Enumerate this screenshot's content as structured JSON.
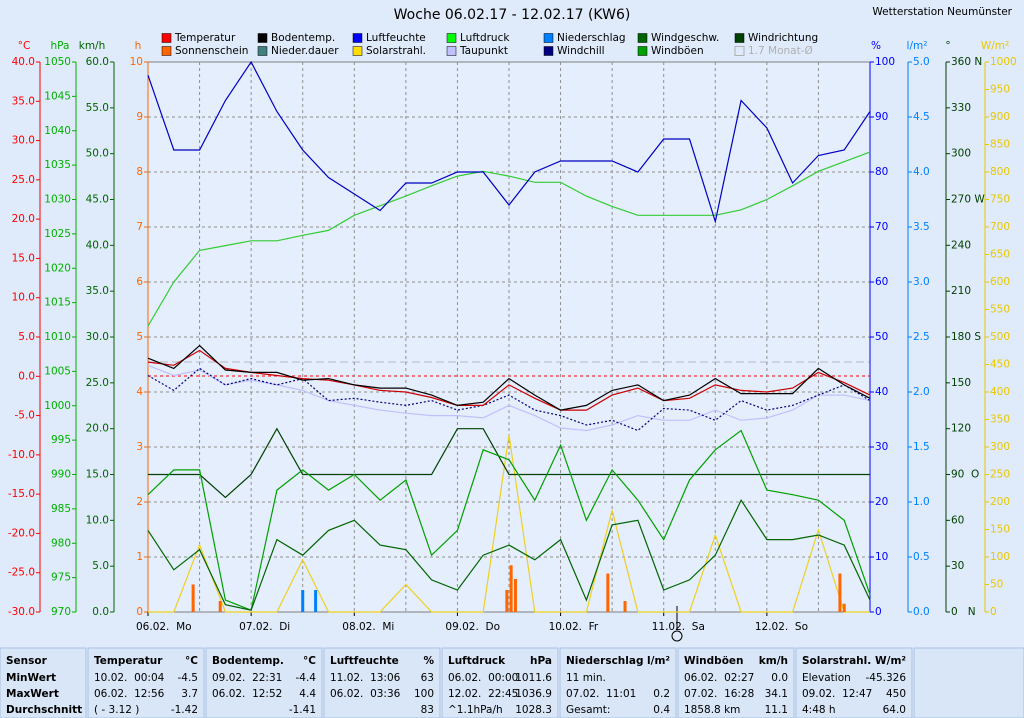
{
  "chart_data": {
    "type": "line",
    "title": "Woche 06.02.17 - 12.02.17 (KW6)",
    "station": "Wetterstation Neumünster",
    "xlim": [
      0,
      168
    ],
    "xticks": [
      {
        "value": 0,
        "label": "06.02.  Mo"
      },
      {
        "value": 24,
        "label": "07.02.  Di"
      },
      {
        "value": 48,
        "label": "08.02.  Mi"
      },
      {
        "value": 72,
        "label": "09.02.  Do"
      },
      {
        "value": 96,
        "label": "10.02.  Fr"
      },
      {
        "value": 120,
        "label": "11.02.  Sa"
      },
      {
        "value": 144,
        "label": "12.02.  So"
      }
    ],
    "xminor": [
      12,
      36,
      60,
      84,
      108,
      132,
      156
    ],
    "axes": [
      {
        "unit": "°C",
        "color": "#ff0000",
        "lim": [
          -30,
          40
        ],
        "ticks": [
          {
            "value": 40,
            "label": "40.0"
          },
          {
            "value": 35,
            "label": "35.0"
          },
          {
            "value": 30,
            "label": "30.0"
          },
          {
            "value": 25,
            "label": "25.0"
          },
          {
            "value": 20,
            "label": "20.0"
          },
          {
            "value": 15,
            "label": "15.0"
          },
          {
            "value": 10,
            "label": "10.0"
          },
          {
            "value": 5,
            "label": "5.0"
          },
          {
            "value": 0,
            "label": "0.0"
          },
          {
            "value": -5,
            "label": "-5.0"
          },
          {
            "value": -10,
            "label": "-10.0"
          },
          {
            "value": -15,
            "label": "-15.0"
          },
          {
            "value": -20,
            "label": "-20.0"
          },
          {
            "value": -25,
            "label": "-25.0"
          },
          {
            "value": -30,
            "label": "-30.0"
          }
        ]
      },
      {
        "unit": "hPa",
        "color": "#00b000",
        "lim": [
          970,
          1050
        ],
        "ticks": [
          1050,
          1045,
          1040,
          1035,
          1030,
          1025,
          1020,
          1015,
          1010,
          1005,
          1000,
          995,
          990,
          985,
          980,
          975,
          970
        ]
      },
      {
        "unit": "km/h",
        "color": "#006400",
        "lim": [
          0,
          60
        ],
        "ticks": [
          {
            "value": 60,
            "label": "60.0"
          },
          {
            "value": 55,
            "label": "55.0"
          },
          {
            "value": 50,
            "label": "50.0"
          },
          {
            "value": 45,
            "label": "45.0"
          },
          {
            "value": 40,
            "label": "40.0"
          },
          {
            "value": 35,
            "label": "35.0"
          },
          {
            "value": 30,
            "label": "30.0"
          },
          {
            "value": 25,
            "label": "25.0"
          },
          {
            "value": 20,
            "label": "20.0"
          },
          {
            "value": 15,
            "label": "15.0"
          },
          {
            "value": 10,
            "label": "10.0"
          },
          {
            "value": 5,
            "label": "5.0"
          },
          {
            "value": 0,
            "label": "0.0"
          }
        ]
      },
      {
        "unit": "h",
        "color": "#ff6600",
        "lim": [
          0,
          10
        ],
        "grid": true,
        "ticks": [
          10,
          9,
          8,
          7,
          6,
          5,
          4,
          3,
          2,
          1,
          0
        ]
      },
      {
        "unit": "%",
        "color": "#0000ff",
        "lim": [
          0,
          100
        ],
        "ticks": [
          100,
          90,
          80,
          70,
          60,
          50,
          40,
          30,
          20,
          10,
          0
        ]
      },
      {
        "unit": "l/m²",
        "color": "#0080ff",
        "lim": [
          0,
          5
        ],
        "ticks": [
          {
            "value": 5,
            "label": "5.0"
          },
          {
            "value": 4.5,
            "label": "4.5"
          },
          {
            "value": 4,
            "label": "4.0"
          },
          {
            "value": 3.5,
            "label": "3.5"
          },
          {
            "value": 3,
            "label": "3.0"
          },
          {
            "value": 2.5,
            "label": "2.5"
          },
          {
            "value": 2,
            "label": "2.0"
          },
          {
            "value": 1.5,
            "label": "1.5"
          },
          {
            "value": 1,
            "label": "1.0"
          },
          {
            "value": 0.5,
            "label": "0.5"
          },
          {
            "value": 0,
            "label": "0.0"
          }
        ]
      },
      {
        "unit": "°",
        "color": "#004000",
        "lim": [
          0,
          360
        ],
        "ticks": [
          {
            "value": 360,
            "label": "360 N"
          },
          330,
          300,
          {
            "value": 270,
            "label": "270 W"
          },
          240,
          210,
          {
            "value": 180,
            "label": "180 S"
          },
          150,
          120,
          {
            "value": 90,
            "label": "90  O"
          },
          60,
          30,
          {
            "value": 0,
            "label": "0   N"
          }
        ]
      },
      {
        "unit": "W/m²",
        "color": "#e8c800",
        "lim": [
          0,
          1000
        ],
        "ticks": [
          1000,
          950,
          900,
          850,
          800,
          750,
          700,
          650,
          600,
          550,
          500,
          450,
          400,
          350,
          300,
          250,
          200,
          150,
          100,
          50,
          0
        ]
      }
    ],
    "x": [
      0,
      6,
      12,
      18,
      24,
      30,
      36,
      42,
      48,
      54,
      60,
      66,
      72,
      78,
      84,
      90,
      96,
      102,
      108,
      114,
      120,
      126,
      132,
      138,
      144,
      150,
      156,
      162,
      168
    ],
    "series": [
      {
        "name": "Temperatur",
        "color": "#ff0000",
        "line_color": "#cc0000",
        "axis": 0,
        "values": [
          1.8,
          1.4,
          3.3,
          1,
          0.5,
          0.1,
          -0.3,
          -0.5,
          -1.1,
          -1.8,
          -2,
          -2.7,
          -3.7,
          -3.7,
          -1.1,
          -2.8,
          -4.3,
          -4.3,
          -2.4,
          -1.5,
          -3.1,
          -2.8,
          -1.1,
          -1.8,
          -2,
          -1.5,
          0.5,
          -0.8,
          -2.4
        ]
      },
      {
        "name": "Bodentemp.",
        "color": "#000000",
        "axis": 0,
        "values": [
          2.3,
          1,
          3.9,
          0.8,
          0.5,
          0.5,
          -0.5,
          -0.3,
          -1.1,
          -1.5,
          -1.5,
          -2.4,
          -3.7,
          -3.3,
          -0.3,
          -2.4,
          -4.3,
          -3.7,
          -1.8,
          -1.1,
          -3.1,
          -2.4,
          -0.3,
          -2.2,
          -2.2,
          -2.2,
          1,
          -1.1,
          -2.8
        ]
      },
      {
        "name": "Luftfeuchte",
        "color": "#0000ff",
        "line_color": "#0000c0",
        "axis": 4,
        "values": [
          97.6,
          84,
          84,
          93,
          100,
          91,
          84,
          79,
          76,
          73,
          78,
          78,
          80,
          80,
          74,
          80,
          82,
          82,
          82,
          80,
          86,
          86,
          71,
          93,
          88,
          78,
          83,
          84,
          91
        ]
      },
      {
        "name": "Luftdruck",
        "color": "#00ff00",
        "line_color": "#33cc33",
        "axis": 1,
        "values": [
          1011.6,
          1018,
          1022.6,
          1023.3,
          1024,
          1024,
          1024.8,
          1025.5,
          1027.7,
          1029.1,
          1030.5,
          1032,
          1033.4,
          1034.1,
          1033.4,
          1032.5,
          1032.5,
          1030.5,
          1029,
          1027.7,
          1027.7,
          1027.7,
          1027.7,
          1028.5,
          1030,
          1032,
          1034.1,
          1035.5,
          1036.9
        ]
      },
      {
        "name": "Niederschlag",
        "color": "#0080ff",
        "axis": 5,
        "kind": "bar",
        "x": [
          36,
          39
        ],
        "values": [
          0.2,
          0.2
        ]
      },
      {
        "name": "Windgeschw.",
        "color": "#006400",
        "axis": 2,
        "values": [
          8.9,
          4.6,
          6.8,
          0.8,
          0.2,
          7.9,
          6.2,
          8.9,
          10,
          7.3,
          6.8,
          3.5,
          2.4,
          6.2,
          7.3,
          5.7,
          7.9,
          1.3,
          9.5,
          10,
          2.4,
          3.5,
          6.2,
          12.2,
          7.9,
          7.9,
          8.4,
          7.3,
          1.3
        ]
      },
      {
        "name": "Windrichtung",
        "color": "#004000",
        "axis": 6,
        "values": [
          90,
          90,
          90,
          75,
          90,
          120,
          90,
          90,
          90,
          90,
          90,
          90,
          120,
          120,
          90,
          90,
          90,
          90,
          90,
          90,
          90,
          90,
          90,
          90,
          90,
          90,
          90,
          90,
          90
        ]
      },
      {
        "name": "Sonnenschein",
        "color": "#ff6600",
        "axis": 3,
        "kind": "bar",
        "x": [
          10.5,
          16.8,
          83.5,
          84.5,
          85.5,
          107,
          111,
          161,
          162
        ],
        "values": [
          0.5,
          0.2,
          0.4,
          0.85,
          0.6,
          0.7,
          0.2,
          0.7,
          0.15
        ]
      },
      {
        "name": "Nieder.dauer",
        "color": "#408080",
        "axis": 3,
        "kind": "bar",
        "x": [],
        "values": []
      },
      {
        "name": "Solarstrahl.",
        "color": "#ffdd00",
        "line_color": "#f0d020",
        "axis": 7,
        "values": [
          0,
          0,
          122,
          0,
          0,
          0,
          95,
          0,
          0,
          0,
          50,
          0,
          0,
          0,
          322,
          0,
          0,
          0,
          185,
          0,
          0,
          0,
          140,
          0,
          0,
          0,
          149,
          0,
          0
        ]
      },
      {
        "name": "Taupunkt",
        "color": "#c0c0ff",
        "axis": 0,
        "values": [
          1.4,
          0.1,
          0.8,
          -1.1,
          -0.5,
          -1.1,
          -1.8,
          -3.1,
          -3.7,
          -4.3,
          -4.7,
          -5,
          -5,
          -5.3,
          -3.7,
          -5,
          -6.6,
          -6.9,
          -6.2,
          -5,
          -5.6,
          -5.6,
          -4.3,
          -5.6,
          -5.3,
          -4.3,
          -2.4,
          -2.4,
          -3.1
        ]
      },
      {
        "name": "Windchill",
        "color": "#000080",
        "axis": 0,
        "style": "dotted",
        "values": [
          0.1,
          -1.8,
          1,
          -1.1,
          -0.3,
          -1.1,
          -0.3,
          -3.1,
          -2.8,
          -3.3,
          -3.7,
          -3.1,
          -4.3,
          -3.7,
          -2.4,
          -4.3,
          -5,
          -6.2,
          -5.6,
          -6.9,
          -4.1,
          -4.3,
          -5.6,
          -3.1,
          -4.3,
          -3.7,
          -2.4,
          -1.1,
          -3.1
        ]
      },
      {
        "name": "Windböen",
        "color": "#00a000",
        "axis": 2,
        "values": [
          12.8,
          15.5,
          15.5,
          1.3,
          0.2,
          13.3,
          15.5,
          13.3,
          15,
          12.2,
          14.4,
          6.2,
          8.9,
          17.7,
          16.6,
          12.2,
          18.2,
          10,
          15.5,
          12.2,
          7.9,
          14.4,
          17.7,
          19.8,
          13.3,
          12.8,
          12.2,
          10,
          1.9
        ]
      }
    ],
    "legend_extra": "1.7 Monat-Ø"
  },
  "table": {
    "sensor_label": "Sensor",
    "columns": [
      {
        "name": "Temperatur",
        "unit": "°C"
      },
      {
        "name": "Bodentemp.",
        "unit": "°C"
      },
      {
        "name": "Luftfeuchte",
        "unit": "%"
      },
      {
        "name": "Luftdruck",
        "unit": "hPa"
      },
      {
        "name": "Niederschlag",
        "unit": "l/m²"
      },
      {
        "name": "Windböen",
        "unit": "km/h"
      },
      {
        "name": "Solarstrahl.",
        "unit": "W/m²"
      }
    ],
    "rows": [
      {
        "label": "MinWert",
        "cells": [
          [
            "10.02.  00:04",
            "-4.5"
          ],
          [
            "09.02.  22:31",
            "-4.4"
          ],
          [
            "11.02.  13:06",
            "63"
          ],
          [
            "06.02.  00:00",
            "1011.6"
          ],
          [
            "11 min.",
            null
          ],
          [
            "06.02.  02:27",
            "0.0"
          ],
          [
            "Elevation",
            "-45.326"
          ]
        ]
      },
      {
        "label": "MaxWert",
        "cells": [
          [
            "06.02.  12:56",
            "3.7"
          ],
          [
            "06.02.  12:52",
            "4.4"
          ],
          [
            "06.02.  03:36",
            "100"
          ],
          [
            "12.02.  22:45",
            "1036.9"
          ],
          [
            "07.02.  11:01",
            "0.2"
          ],
          [
            "07.02.  16:28",
            "34.1"
          ],
          [
            "09.02.  12:47",
            "450"
          ]
        ]
      },
      {
        "label": "Durchschnitt",
        "cells": [
          [
            "( - 3.12 )",
            "-1.42"
          ],
          [
            null,
            "-1.41"
          ],
          [
            null,
            "83"
          ],
          [
            "^1.1hPa/h",
            "1028.3"
          ],
          [
            "Gesamt:",
            "0.4"
          ],
          [
            "1858.8 km",
            "11.1"
          ],
          [
            "4:48 h",
            "64.0"
          ]
        ]
      }
    ]
  }
}
